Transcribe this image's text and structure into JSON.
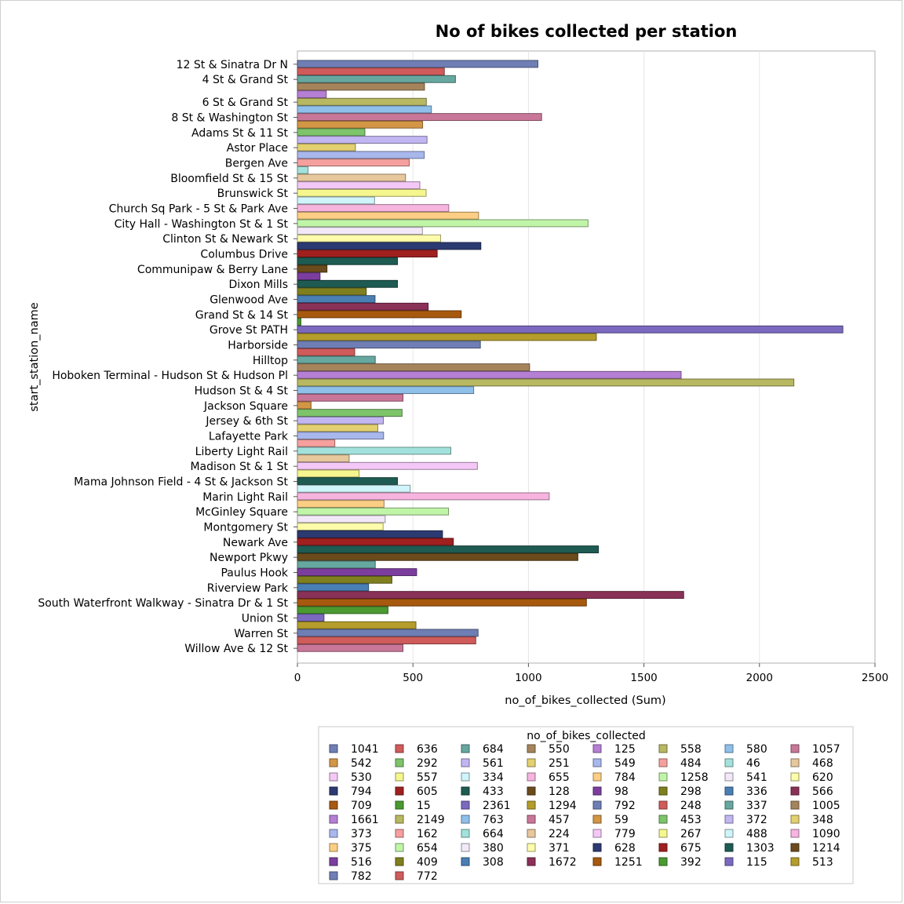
{
  "chart_data": {
    "type": "bar",
    "orientation": "horizontal",
    "title": "No of bikes collected per station",
    "xlabel": "no_of_bikes_collected (Sum)",
    "ylabel": "start_station_name",
    "xlim": [
      0,
      2500
    ],
    "xticks": [
      "0",
      "500",
      "1000",
      "1500",
      "2000",
      "2500"
    ],
    "grid": true,
    "legend_placement": "bottom",
    "legend_title": "no_of_bikes_collected",
    "categories": [
      "12 St & Sinatra Dr N",
      "4 St & Grand St",
      "6 St & Grand St",
      "8 St & Washington St",
      "Adams St & 11 St",
      "Astor Place",
      "Bergen Ave",
      "Bloomfield St & 15 St",
      "Brunswick St",
      "Church Sq Park - 5 St & Park Ave",
      "City Hall - Washington St & 1 St",
      "Clinton St & Newark St",
      "Columbus Drive",
      "Communipaw & Berry Lane",
      "Dixon Mills",
      "Glenwood Ave",
      "Grand St & 14 St",
      "Grove St PATH",
      "Harborside",
      "Hilltop",
      "Hoboken Terminal - Hudson St & Hudson Pl",
      "Hudson St & 4 St",
      "Jackson Square",
      "Jersey & 6th St",
      "Lafayette Park",
      "Liberty Light Rail",
      "Madison St & 1 St",
      "Mama Johnson Field - 4 St & Jackson St",
      "Marin Light Rail",
      "McGinley Square",
      "Montgomery St",
      "Newark Ave",
      "Newport Pkwy",
      "Paulus Hook",
      "Riverview Park",
      "South Waterfront Walkway - Sinatra Dr & 1 St",
      "Union St",
      "Warren St",
      "Willow Ave & 12 St"
    ],
    "bars": [
      {
        "station": "12 St & Sinatra Dr N",
        "value": 1041,
        "color": "#6f7fb5"
      },
      {
        "station": "12 St & Sinatra Dr N",
        "value": 636,
        "color": "#d05b5b"
      },
      {
        "station": "4 St & Grand St",
        "value": 684,
        "color": "#66a8a0"
      },
      {
        "station": "4 St & Grand St",
        "value": 550,
        "color": "#a6845b"
      },
      {
        "station": "4 St & Grand St",
        "value": 125,
        "color": "#b57fd4"
      },
      {
        "station": "6 St & Grand St",
        "value": 558,
        "color": "#b8b862"
      },
      {
        "station": "6 St & Grand St",
        "value": 580,
        "color": "#8fc0ea"
      },
      {
        "station": "8 St & Washington St",
        "value": 1057,
        "color": "#c97799"
      },
      {
        "station": "8 St & Washington St",
        "value": 542,
        "color": "#d39646"
      },
      {
        "station": "Adams St & 11 St",
        "value": 292,
        "color": "#7dc46a"
      },
      {
        "station": "Adams St & 11 St",
        "value": 561,
        "color": "#c2b6f2"
      },
      {
        "station": "Astor Place",
        "value": 251,
        "color": "#e3d070"
      },
      {
        "station": "Astor Place",
        "value": 549,
        "color": "#a8b7ec"
      },
      {
        "station": "Bergen Ave",
        "value": 484,
        "color": "#f5a09e"
      },
      {
        "station": "Bergen Ave",
        "value": 46,
        "color": "#a3e2dc"
      },
      {
        "station": "Bloomfield St & 15 St",
        "value": 468,
        "color": "#e7c79c"
      },
      {
        "station": "Bloomfield St & 15 St",
        "value": 530,
        "color": "#f4c8f6"
      },
      {
        "station": "Brunswick St",
        "value": 557,
        "color": "#f6f68f"
      },
      {
        "station": "Brunswick St",
        "value": 334,
        "color": "#cff4fa"
      },
      {
        "station": "Church Sq Park - 5 St & Park Ave",
        "value": 655,
        "color": "#f6b4df"
      },
      {
        "station": "Church Sq Park - 5 St & Park Ave",
        "value": 784,
        "color": "#fcce84"
      },
      {
        "station": "City Hall - Washington St & 1 St",
        "value": 1258,
        "color": "#c0f5a8"
      },
      {
        "station": "City Hall - Washington St & 1 St",
        "value": 541,
        "color": "#f2e8f8"
      },
      {
        "station": "Clinton St & Newark St",
        "value": 620,
        "color": "#fdfcaa"
      },
      {
        "station": "Clinton St & Newark St",
        "value": 794,
        "color": "#2c3a72"
      },
      {
        "station": "Columbus Drive",
        "value": 605,
        "color": "#a01f1f"
      },
      {
        "station": "Columbus Drive",
        "value": 433,
        "color": "#1e5b52"
      },
      {
        "station": "Communipaw & Berry Lane",
        "value": 128,
        "color": "#6b4b1c"
      },
      {
        "station": "Communipaw & Berry Lane",
        "value": 98,
        "color": "#7c3e9e"
      },
      {
        "station": "Dixon Mills",
        "value": 433,
        "color": "#1e5b52"
      },
      {
        "station": "Dixon Mills",
        "value": 298,
        "color": "#7f7f1f"
      },
      {
        "station": "Glenwood Ave",
        "value": 336,
        "color": "#4a7fb4"
      },
      {
        "station": "Glenwood Ave",
        "value": 566,
        "color": "#8a3157"
      },
      {
        "station": "Grand St & 14 St",
        "value": 709,
        "color": "#a7590e"
      },
      {
        "station": "Grand St & 14 St",
        "value": 15,
        "color": "#4a9a31"
      },
      {
        "station": "Grove St PATH",
        "value": 2361,
        "color": "#7b69c0"
      },
      {
        "station": "Grove St PATH",
        "value": 1294,
        "color": "#b59d2b"
      },
      {
        "station": "Harborside",
        "value": 792,
        "color": "#6f7fb5"
      },
      {
        "station": "Harborside",
        "value": 248,
        "color": "#d05b5b"
      },
      {
        "station": "Hilltop",
        "value": 337,
        "color": "#66a8a0"
      },
      {
        "station": "Hilltop",
        "value": 1005,
        "color": "#a6845b"
      },
      {
        "station": "Hoboken Terminal - Hudson St & Hudson Pl",
        "value": 1661,
        "color": "#b57fd4"
      },
      {
        "station": "Hoboken Terminal - Hudson St & Hudson Pl",
        "value": 2149,
        "color": "#b8b862"
      },
      {
        "station": "Hudson St & 4 St",
        "value": 763,
        "color": "#8fc0ea"
      },
      {
        "station": "Hudson St & 4 St",
        "value": 457,
        "color": "#c97799"
      },
      {
        "station": "Jackson Square",
        "value": 59,
        "color": "#d39646"
      },
      {
        "station": "Jackson Square",
        "value": 453,
        "color": "#7dc46a"
      },
      {
        "station": "Jersey & 6th St",
        "value": 372,
        "color": "#c2b6f2"
      },
      {
        "station": "Jersey & 6th St",
        "value": 348,
        "color": "#e3d070"
      },
      {
        "station": "Lafayette Park",
        "value": 373,
        "color": "#a8b7ec"
      },
      {
        "station": "Lafayette Park",
        "value": 162,
        "color": "#f5a09e"
      },
      {
        "station": "Liberty Light Rail",
        "value": 664,
        "color": "#a3e2dc"
      },
      {
        "station": "Liberty Light Rail",
        "value": 224,
        "color": "#e7c79c"
      },
      {
        "station": "Madison St & 1 St",
        "value": 779,
        "color": "#f4c8f6"
      },
      {
        "station": "Madison St & 1 St",
        "value": 267,
        "color": "#f6f68f"
      },
      {
        "station": "Mama Johnson Field - 4 St & Jackson St",
        "value": 433,
        "color": "#1e5b52"
      },
      {
        "station": "Mama Johnson Field - 4 St & Jackson St",
        "value": 488,
        "color": "#cff4fa"
      },
      {
        "station": "Marin Light Rail",
        "value": 1090,
        "color": "#f6b4df"
      },
      {
        "station": "Marin Light Rail",
        "value": 375,
        "color": "#fcce84"
      },
      {
        "station": "McGinley Square",
        "value": 654,
        "color": "#c0f5a8"
      },
      {
        "station": "McGinley Square",
        "value": 380,
        "color": "#f2e8f8"
      },
      {
        "station": "Montgomery St",
        "value": 371,
        "color": "#fdfcaa"
      },
      {
        "station": "Montgomery St",
        "value": 628,
        "color": "#2c3a72"
      },
      {
        "station": "Newark Ave",
        "value": 675,
        "color": "#a01f1f"
      },
      {
        "station": "Newark Ave",
        "value": 1303,
        "color": "#1e5b52"
      },
      {
        "station": "Newport Pkwy",
        "value": 1214,
        "color": "#6b4b1c"
      },
      {
        "station": "Newport Pkwy",
        "value": 337,
        "color": "#66a8a0"
      },
      {
        "station": "Paulus Hook",
        "value": 516,
        "color": "#7c3e9e"
      },
      {
        "station": "Paulus Hook",
        "value": 409,
        "color": "#7f7f1f"
      },
      {
        "station": "Riverview Park",
        "value": 308,
        "color": "#4a7fb4"
      },
      {
        "station": "Riverview Park",
        "value": 1672,
        "color": "#8a3157"
      },
      {
        "station": "South Waterfront Walkway - Sinatra Dr & 1 St",
        "value": 1251,
        "color": "#a7590e"
      },
      {
        "station": "South Waterfront Walkway - Sinatra Dr & 1 St",
        "value": 392,
        "color": "#4a9a31"
      },
      {
        "station": "Union St",
        "value": 115,
        "color": "#7b69c0"
      },
      {
        "station": "Union St",
        "value": 513,
        "color": "#b59d2b"
      },
      {
        "station": "Warren St",
        "value": 782,
        "color": "#6f7fb5"
      },
      {
        "station": "Warren St",
        "value": 772,
        "color": "#d05b5b"
      },
      {
        "station": "Willow Ave & 12 St",
        "value": 457,
        "color": "#c97799"
      }
    ],
    "legend": [
      {
        "label": "1041",
        "color": "#6f7fb5"
      },
      {
        "label": "636",
        "color": "#d05b5b"
      },
      {
        "label": "684",
        "color": "#66a8a0"
      },
      {
        "label": "550",
        "color": "#a6845b"
      },
      {
        "label": "125",
        "color": "#b57fd4"
      },
      {
        "label": "558",
        "color": "#b8b862"
      },
      {
        "label": "580",
        "color": "#8fc0ea"
      },
      {
        "label": "1057",
        "color": "#c97799"
      },
      {
        "label": "542",
        "color": "#d39646"
      },
      {
        "label": "292",
        "color": "#7dc46a"
      },
      {
        "label": "561",
        "color": "#c2b6f2"
      },
      {
        "label": "251",
        "color": "#e3d070"
      },
      {
        "label": "549",
        "color": "#a8b7ec"
      },
      {
        "label": "484",
        "color": "#f5a09e"
      },
      {
        "label": "46",
        "color": "#a3e2dc"
      },
      {
        "label": "468",
        "color": "#e7c79c"
      },
      {
        "label": "530",
        "color": "#f4c8f6"
      },
      {
        "label": "557",
        "color": "#f6f68f"
      },
      {
        "label": "334",
        "color": "#cff4fa"
      },
      {
        "label": "655",
        "color": "#f6b4df"
      },
      {
        "label": "784",
        "color": "#fcce84"
      },
      {
        "label": "1258",
        "color": "#c0f5a8"
      },
      {
        "label": "541",
        "color": "#f2e8f8"
      },
      {
        "label": "620",
        "color": "#fdfcaa"
      },
      {
        "label": "794",
        "color": "#2c3a72"
      },
      {
        "label": "605",
        "color": "#a01f1f"
      },
      {
        "label": "433",
        "color": "#1e5b52"
      },
      {
        "label": "128",
        "color": "#6b4b1c"
      },
      {
        "label": "98",
        "color": "#7c3e9e"
      },
      {
        "label": "298",
        "color": "#7f7f1f"
      },
      {
        "label": "336",
        "color": "#4a7fb4"
      },
      {
        "label": "566",
        "color": "#8a3157"
      },
      {
        "label": "709",
        "color": "#a7590e"
      },
      {
        "label": "15",
        "color": "#4a9a31"
      },
      {
        "label": "2361",
        "color": "#7b69c0"
      },
      {
        "label": "1294",
        "color": "#b59d2b"
      },
      {
        "label": "792",
        "color": "#6f7fb5"
      },
      {
        "label": "248",
        "color": "#d05b5b"
      },
      {
        "label": "337",
        "color": "#66a8a0"
      },
      {
        "label": "1005",
        "color": "#a6845b"
      },
      {
        "label": "1661",
        "color": "#b57fd4"
      },
      {
        "label": "2149",
        "color": "#b8b862"
      },
      {
        "label": "763",
        "color": "#8fc0ea"
      },
      {
        "label": "457",
        "color": "#c97799"
      },
      {
        "label": "59",
        "color": "#d39646"
      },
      {
        "label": "453",
        "color": "#7dc46a"
      },
      {
        "label": "372",
        "color": "#c2b6f2"
      },
      {
        "label": "348",
        "color": "#e3d070"
      },
      {
        "label": "373",
        "color": "#a8b7ec"
      },
      {
        "label": "162",
        "color": "#f5a09e"
      },
      {
        "label": "664",
        "color": "#a3e2dc"
      },
      {
        "label": "224",
        "color": "#e7c79c"
      },
      {
        "label": "779",
        "color": "#f4c8f6"
      },
      {
        "label": "267",
        "color": "#f6f68f"
      },
      {
        "label": "488",
        "color": "#cff4fa"
      },
      {
        "label": "1090",
        "color": "#f6b4df"
      },
      {
        "label": "375",
        "color": "#fcce84"
      },
      {
        "label": "654",
        "color": "#c0f5a8"
      },
      {
        "label": "380",
        "color": "#f2e8f8"
      },
      {
        "label": "371",
        "color": "#fdfcaa"
      },
      {
        "label": "628",
        "color": "#2c3a72"
      },
      {
        "label": "675",
        "color": "#a01f1f"
      },
      {
        "label": "1303",
        "color": "#1e5b52"
      },
      {
        "label": "1214",
        "color": "#6b4b1c"
      },
      {
        "label": "516",
        "color": "#7c3e9e"
      },
      {
        "label": "409",
        "color": "#7f7f1f"
      },
      {
        "label": "308",
        "color": "#4a7fb4"
      },
      {
        "label": "1672",
        "color": "#8a3157"
      },
      {
        "label": "1251",
        "color": "#a7590e"
      },
      {
        "label": "392",
        "color": "#4a9a31"
      },
      {
        "label": "115",
        "color": "#7b69c0"
      },
      {
        "label": "513",
        "color": "#b59d2b"
      },
      {
        "label": "782",
        "color": "#6f7fb5"
      },
      {
        "label": "772",
        "color": "#d05b5b"
      }
    ]
  }
}
